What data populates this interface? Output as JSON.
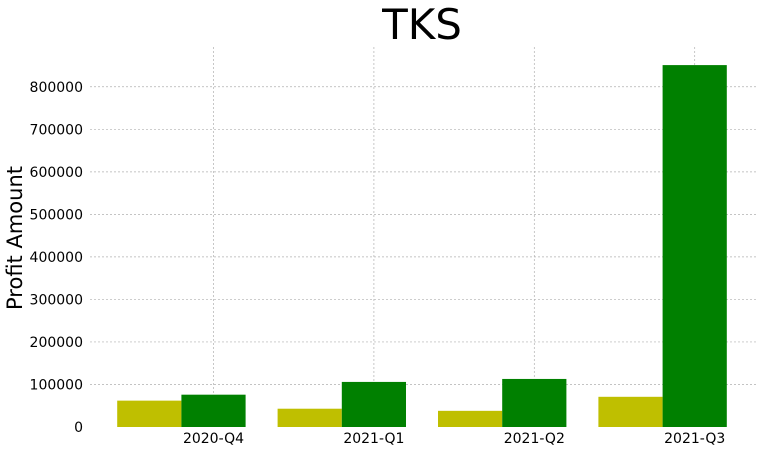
{
  "chart_data": {
    "type": "bar",
    "title": "TKS",
    "xlabel": "",
    "ylabel": "Profit Amount",
    "categories": [
      "2020-Q4",
      "2021-Q1",
      "2021-Q2",
      "2021-Q3"
    ],
    "series": [
      {
        "values": [
          62000,
          43000,
          38000,
          71000
        ],
        "color": "#bfbf00"
      },
      {
        "values": [
          76000,
          106000,
          113000,
          851000
        ],
        "color": "#008000"
      }
    ],
    "yticks": [
      0,
      100000,
      200000,
      300000,
      400000,
      500000,
      600000,
      700000,
      800000
    ],
    "ylim": [
      0,
      893550
    ],
    "grid": true,
    "legend": "none"
  }
}
